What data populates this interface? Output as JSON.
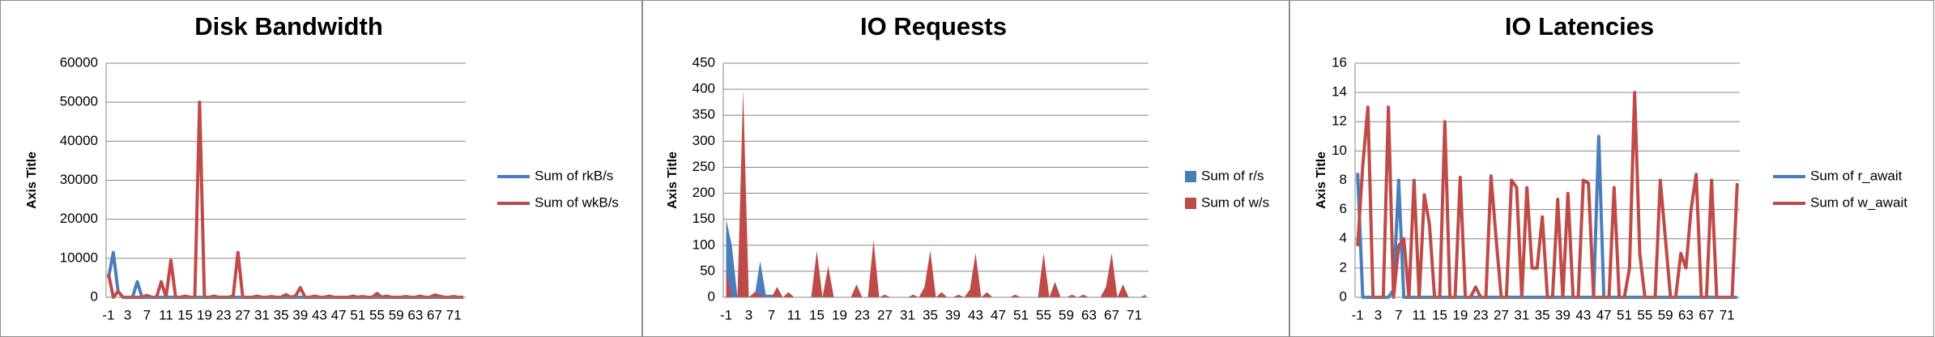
{
  "chart_data": [
    {
      "type": "line",
      "title": "Disk Bandwidth",
      "y_label": "Axis Title",
      "categories": [
        -1,
        null,
        null,
        null,
        3,
        null,
        null,
        null,
        7,
        null,
        null,
        null,
        11,
        null,
        null,
        null,
        15,
        null,
        null,
        null,
        19,
        null,
        null,
        null,
        23,
        null,
        null,
        null,
        27,
        null,
        null,
        null,
        31,
        null,
        null,
        null,
        35,
        null,
        null,
        null,
        39,
        null,
        null,
        null,
        43,
        null,
        null,
        null,
        47,
        null,
        null,
        null,
        51,
        null,
        null,
        null,
        55,
        null,
        null,
        null,
        59,
        null,
        null,
        null,
        63,
        null,
        null,
        null,
        67,
        null,
        null,
        null,
        71,
        null,
        null
      ],
      "series": [
        {
          "name": "Sum of rkB/s",
          "color": "#4a7ebb",
          "values": [
            5000,
            11500,
            1500,
            0,
            0,
            0,
            4000,
            0,
            0,
            0,
            0,
            0,
            0,
            0,
            0,
            0,
            0,
            0,
            0,
            0,
            0,
            0,
            0,
            0,
            0,
            0,
            0,
            0,
            0,
            0,
            0,
            0,
            0,
            0,
            0,
            0,
            0,
            0,
            0,
            0,
            0,
            0,
            0,
            0,
            0,
            0,
            0,
            0,
            0,
            0,
            0,
            0,
            0,
            0,
            0,
            0,
            0,
            0,
            0,
            0,
            0,
            0,
            0,
            0,
            0,
            0,
            0,
            0,
            0,
            0,
            0,
            0,
            0,
            0,
            0
          ]
        },
        {
          "name": "Sum of wkB/s",
          "color": "#be4b48",
          "values": [
            6000,
            0,
            1500,
            0,
            0,
            0,
            0,
            0,
            500,
            0,
            0,
            4000,
            0,
            9500,
            0,
            0,
            300,
            0,
            0,
            50000,
            0,
            0,
            300,
            0,
            0,
            0,
            300,
            11500,
            0,
            0,
            0,
            300,
            0,
            0,
            200,
            0,
            0,
            700,
            0,
            300,
            2500,
            0,
            0,
            300,
            0,
            0,
            300,
            0,
            0,
            0,
            0,
            300,
            0,
            200,
            0,
            0,
            1000,
            0,
            300,
            0,
            0,
            0,
            200,
            0,
            0,
            300,
            0,
            0,
            600,
            300,
            0,
            0,
            200,
            0,
            0
          ]
        }
      ],
      "ylim": [
        0,
        60000
      ],
      "yticks": [
        0,
        10000,
        20000,
        30000,
        40000,
        50000,
        60000
      ],
      "grid": true
    },
    {
      "type": "area",
      "title": "IO Requests",
      "y_label": "Axis Title",
      "categories": [
        -1,
        null,
        null,
        null,
        3,
        null,
        null,
        null,
        7,
        null,
        null,
        null,
        11,
        null,
        null,
        null,
        15,
        null,
        null,
        null,
        19,
        null,
        null,
        null,
        23,
        null,
        null,
        null,
        27,
        null,
        null,
        null,
        31,
        null,
        null,
        null,
        35,
        null,
        null,
        null,
        39,
        null,
        null,
        null,
        43,
        null,
        null,
        null,
        47,
        null,
        null,
        null,
        51,
        null,
        null,
        null,
        55,
        null,
        null,
        null,
        59,
        null,
        null,
        null,
        63,
        null,
        null,
        null,
        67,
        null,
        null,
        null,
        71,
        null,
        null
      ],
      "series": [
        {
          "name": "Sum of r/s",
          "color": "#4a7ebb",
          "values": [
            150,
            100,
            0,
            0,
            0,
            0,
            70,
            5,
            5,
            0,
            0,
            0,
            0,
            0,
            0,
            0,
            0,
            0,
            0,
            0,
            0,
            0,
            0,
            0,
            0,
            0,
            0,
            0,
            0,
            0,
            0,
            0,
            0,
            0,
            0,
            0,
            0,
            0,
            0,
            0,
            0,
            0,
            0,
            0,
            0,
            0,
            0,
            0,
            0,
            0,
            0,
            0,
            0,
            0,
            0,
            0,
            0,
            0,
            0,
            0,
            0,
            0,
            0,
            0,
            0,
            0,
            0,
            0,
            0,
            0,
            0,
            0,
            0,
            0,
            0
          ]
        },
        {
          "name": "Sum of w/s",
          "color": "#be4b48",
          "values": [
            50,
            0,
            0,
            400,
            0,
            10,
            5,
            0,
            0,
            20,
            0,
            10,
            0,
            0,
            0,
            0,
            90,
            0,
            60,
            0,
            0,
            0,
            0,
            25,
            0,
            0,
            110,
            0,
            5,
            0,
            0,
            0,
            0,
            5,
            0,
            20,
            90,
            0,
            10,
            0,
            0,
            5,
            0,
            15,
            85,
            0,
            10,
            0,
            0,
            0,
            0,
            5,
            0,
            0,
            0,
            0,
            85,
            0,
            30,
            0,
            0,
            5,
            0,
            5,
            0,
            0,
            0,
            20,
            85,
            0,
            25,
            0,
            0,
            0,
            5
          ]
        }
      ],
      "ylim": [
        0,
        450
      ],
      "yticks": [
        0,
        50,
        100,
        150,
        200,
        250,
        300,
        350,
        400,
        450
      ],
      "grid": true
    },
    {
      "type": "line",
      "title": "IO Latencies",
      "y_label": "Axis Title",
      "categories": [
        -1,
        null,
        null,
        null,
        3,
        null,
        null,
        null,
        7,
        null,
        null,
        null,
        11,
        null,
        null,
        null,
        15,
        null,
        null,
        null,
        19,
        null,
        null,
        null,
        23,
        null,
        null,
        null,
        27,
        null,
        null,
        null,
        31,
        null,
        null,
        null,
        35,
        null,
        null,
        null,
        39,
        null,
        null,
        null,
        43,
        null,
        null,
        null,
        47,
        null,
        null,
        null,
        51,
        null,
        null,
        null,
        55,
        null,
        null,
        null,
        59,
        null,
        null,
        null,
        63,
        null,
        null,
        null,
        67,
        null,
        null,
        null,
        71,
        null,
        null
      ],
      "series": [
        {
          "name": "Sum of r_await",
          "color": "#4a7ebb",
          "values": [
            8.5,
            0,
            0,
            0,
            0,
            0,
            0,
            0.5,
            8,
            0,
            0,
            0,
            0,
            0,
            0,
            0,
            0,
            0,
            0,
            0,
            0,
            0,
            0,
            0,
            0,
            0,
            0,
            0,
            0,
            0,
            0,
            0,
            0,
            0,
            0,
            0,
            0,
            0,
            0,
            0,
            0,
            0,
            0,
            0,
            0,
            0,
            0,
            11,
            0,
            0,
            0,
            0,
            0,
            0,
            0,
            0,
            0,
            0,
            0,
            0,
            0,
            0,
            0,
            0,
            0,
            0,
            0,
            0,
            0,
            0,
            0,
            0,
            0,
            0,
            0
          ]
        },
        {
          "name": "Sum of w_await",
          "color": "#be4b48",
          "values": [
            3.5,
            9,
            13,
            0,
            0,
            0,
            13,
            0,
            3.5,
            4,
            0,
            8,
            0,
            7,
            5,
            0,
            0,
            12,
            0,
            0,
            8.2,
            0,
            0,
            0.7,
            0,
            0,
            8.3,
            4,
            0,
            0,
            8,
            7.5,
            0,
            7.5,
            2,
            2,
            5.5,
            0,
            0,
            6.7,
            0,
            7.1,
            0,
            0,
            8,
            7.8,
            0,
            0,
            0,
            0,
            7.5,
            0,
            0,
            2,
            14,
            3,
            0,
            0,
            0,
            8,
            4,
            0,
            0,
            3,
            2,
            6,
            8.4,
            0,
            0,
            8,
            0,
            0,
            0,
            0,
            7.8
          ]
        }
      ],
      "ylim": [
        0,
        16
      ],
      "yticks": [
        0,
        2,
        4,
        6,
        8,
        10,
        12,
        14,
        16
      ],
      "grid": true
    }
  ]
}
